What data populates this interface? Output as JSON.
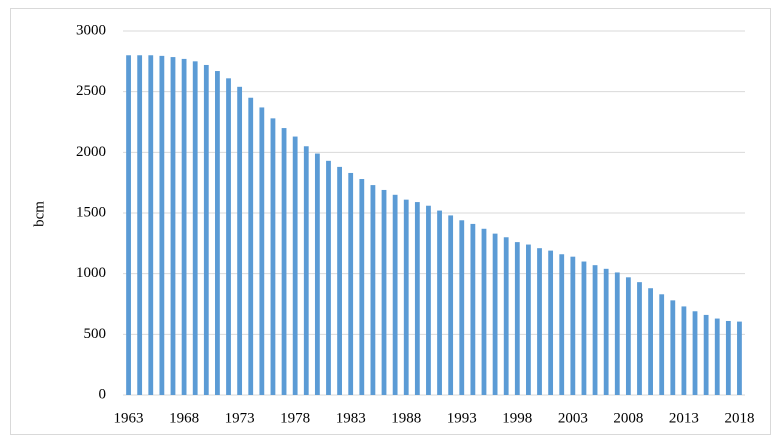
{
  "chart_data": {
    "type": "bar",
    "y_label": "bcm",
    "categories": [
      "1963",
      null,
      null,
      null,
      null,
      "1968",
      null,
      null,
      null,
      null,
      "1973",
      null,
      null,
      null,
      null,
      "1978",
      null,
      null,
      null,
      null,
      "1983",
      null,
      null,
      null,
      null,
      "1988",
      null,
      null,
      null,
      null,
      "1993",
      null,
      null,
      null,
      null,
      "1998",
      null,
      null,
      null,
      null,
      "2003",
      null,
      null,
      null,
      null,
      "2008",
      null,
      null,
      null,
      null,
      "2013",
      null,
      null,
      null,
      null,
      "2018"
    ],
    "values": [
      2800,
      2800,
      2800,
      2795,
      2785,
      2770,
      2750,
      2720,
      2670,
      2610,
      2540,
      2450,
      2370,
      2280,
      2200,
      2130,
      2050,
      1990,
      1930,
      1880,
      1830,
      1780,
      1730,
      1690,
      1650,
      1610,
      1590,
      1560,
      1520,
      1480,
      1440,
      1410,
      1370,
      1330,
      1300,
      1260,
      1240,
      1210,
      1190,
      1160,
      1140,
      1100,
      1070,
      1040,
      1010,
      970,
      930,
      880,
      830,
      780,
      730,
      690,
      660,
      630,
      610,
      605
    ],
    "color": "#5b9bd5",
    "ylim": [
      0,
      3000
    ],
    "yticks": [
      0,
      500,
      1000,
      1500,
      2000,
      2500,
      3000
    ],
    "grid": true
  }
}
